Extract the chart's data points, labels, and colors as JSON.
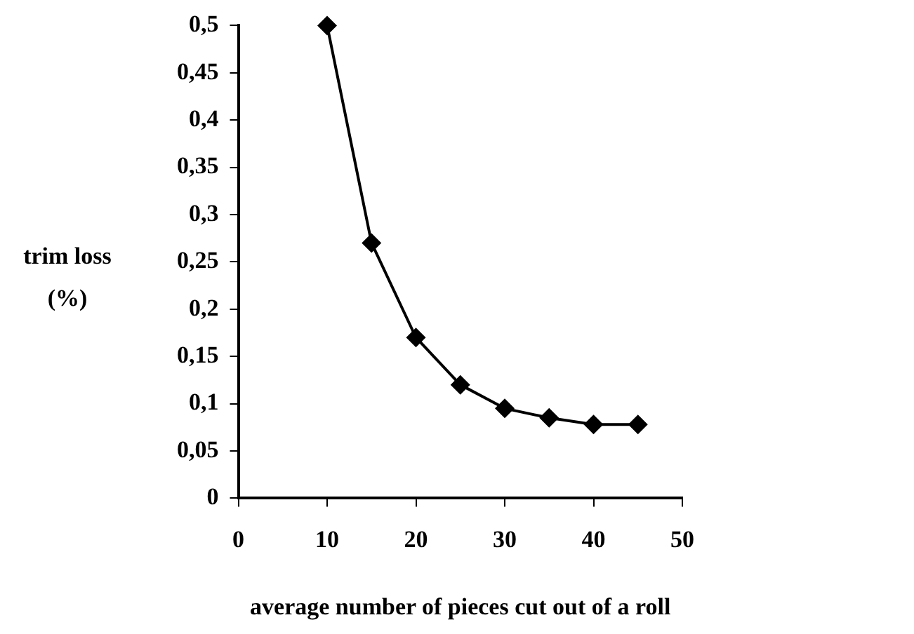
{
  "chart_data": {
    "type": "line",
    "xlabel": "average number of pieces cut out of a roll",
    "ylabel": "trim loss\n(%)",
    "x": [
      10,
      15,
      20,
      25,
      30,
      35,
      40,
      45
    ],
    "series": [
      {
        "color": "#000000",
        "values": [
          0.5,
          0.27,
          0.17,
          0.12,
          0.095,
          0.085,
          0.078,
          0.078
        ]
      }
    ],
    "xlim": [
      0,
      50
    ],
    "xticks": [
      0,
      10,
      20,
      30,
      40,
      50
    ],
    "ylim": [
      0,
      0.5
    ],
    "yticks": [
      {
        "value": 0,
        "label": "0"
      },
      {
        "value": 0.05,
        "label": "0,05"
      },
      {
        "value": 0.1,
        "label": "0,1"
      },
      {
        "value": 0.15,
        "label": "0,15"
      },
      {
        "value": 0.2,
        "label": "0,2"
      },
      {
        "value": 0.25,
        "label": "0,25"
      },
      {
        "value": 0.3,
        "label": "0,3"
      },
      {
        "value": 0.35,
        "label": "0,35"
      },
      {
        "value": 0.4,
        "label": "0,4"
      },
      {
        "value": 0.45,
        "label": "0,45"
      },
      {
        "value": 0.5,
        "label": "0,5"
      }
    ],
    "grid": false,
    "legend": false,
    "marker": "diamond",
    "line_style": "solid"
  }
}
